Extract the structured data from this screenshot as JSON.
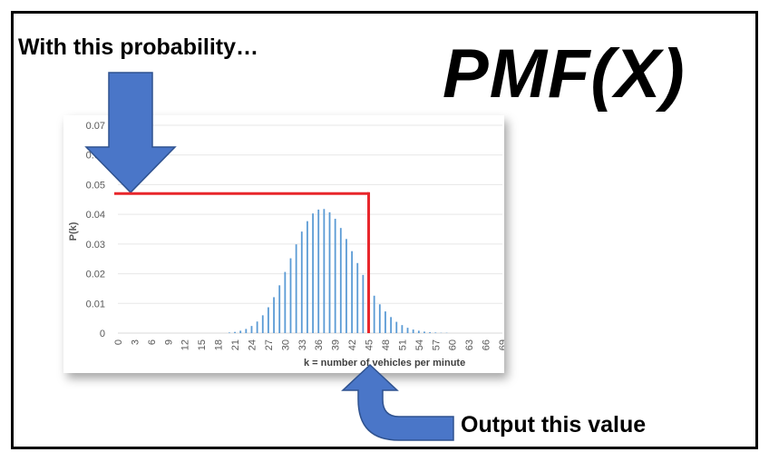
{
  "annotations": {
    "probability_label": "With this probability…",
    "pmf_title": "PMF(X)",
    "output_label": "Output this value"
  },
  "colors": {
    "bar": "#5b9bd5",
    "highlight_line": "#e8262b",
    "arrow_fill": "#4a76c8",
    "arrow_stroke": "#2f528f"
  },
  "chart_data": {
    "type": "bar",
    "title": "",
    "xlabel": "k = number of vehicles per minute",
    "ylabel": "P(k)",
    "ylim": [
      0,
      0.07
    ],
    "yticks": [
      "0",
      "0.01",
      "0.02",
      "0.03",
      "0.04",
      "0.05",
      "0.06",
      "0.07"
    ],
    "xticks": [
      "0",
      "3",
      "6",
      "9",
      "12",
      "15",
      "18",
      "21",
      "24",
      "27",
      "30",
      "33",
      "36",
      "39",
      "42",
      "45",
      "48",
      "51",
      "54",
      "57",
      "60",
      "63",
      "66",
      "69"
    ],
    "grid": "horizontal",
    "highlight": {
      "k": 45,
      "p": 0.047
    },
    "x": [
      0,
      1,
      2,
      3,
      4,
      5,
      6,
      7,
      8,
      9,
      10,
      11,
      12,
      13,
      14,
      15,
      16,
      17,
      18,
      19,
      20,
      21,
      22,
      23,
      24,
      25,
      26,
      27,
      28,
      29,
      30,
      31,
      32,
      33,
      34,
      35,
      36,
      37,
      38,
      39,
      40,
      41,
      42,
      43,
      44,
      45,
      46,
      47,
      48,
      49,
      50,
      51,
      52,
      53,
      54,
      55,
      56,
      57,
      58,
      59,
      60,
      61,
      62,
      63,
      64,
      65,
      66,
      67,
      68,
      69
    ],
    "values": [
      0,
      0,
      0,
      0,
      0,
      0,
      0,
      0,
      0,
      0,
      0,
      0,
      0,
      0,
      0,
      0,
      0,
      0,
      0,
      0,
      0.0002,
      0.0004,
      0.0008,
      0.0014,
      0.0024,
      0.0039,
      0.006,
      0.0087,
      0.0121,
      0.0161,
      0.0206,
      0.0252,
      0.0299,
      0.0342,
      0.0377,
      0.0403,
      0.0416,
      0.0418,
      0.0407,
      0.0385,
      0.0354,
      0.0317,
      0.0276,
      0.0236,
      0.0196,
      0.0159,
      0.0126,
      0.0097,
      0.0073,
      0.0054,
      0.0038,
      0.0027,
      0.0018,
      0.0012,
      0.0008,
      0.0005,
      0.0003,
      0.0002,
      0.0001,
      0.0001,
      0,
      0,
      0,
      0,
      0,
      0,
      0,
      0,
      0,
      0
    ]
  }
}
